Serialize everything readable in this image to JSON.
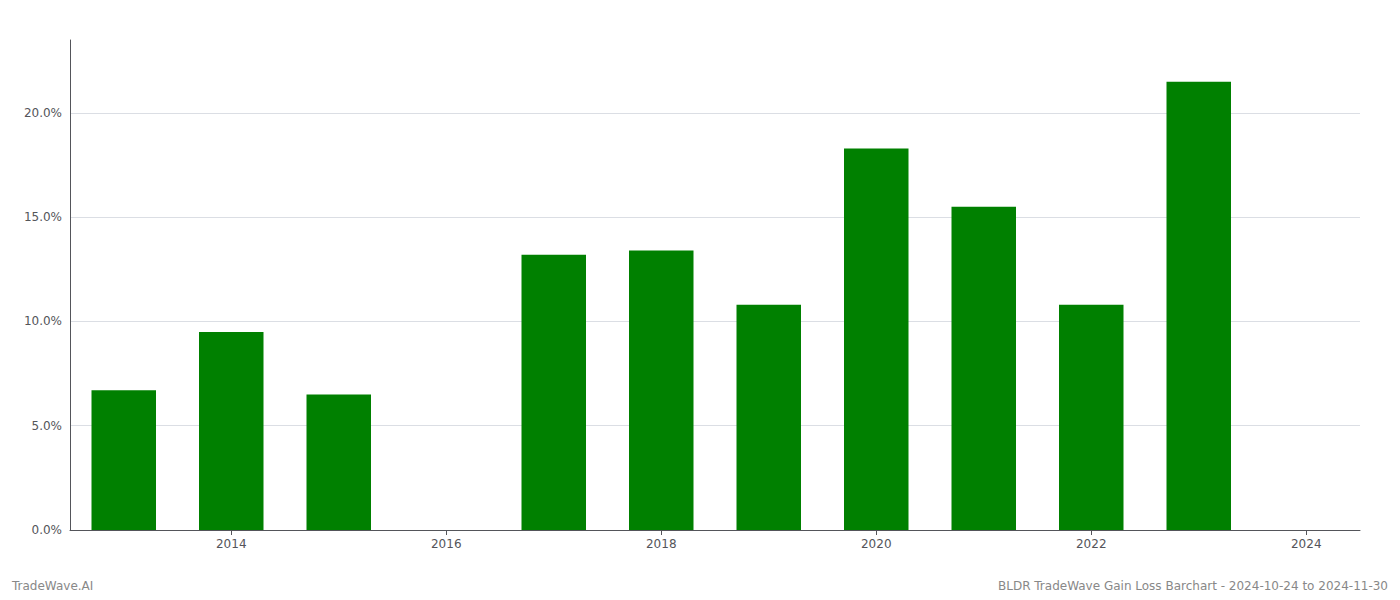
{
  "chart_data": {
    "type": "bar",
    "x": [
      2013,
      2014,
      2015,
      2017,
      2018,
      2019,
      2020,
      2021,
      2022,
      2023
    ],
    "values": [
      0.067,
      0.095,
      0.065,
      0.132,
      0.134,
      0.108,
      0.183,
      0.155,
      0.108,
      0.215
    ],
    "color": "#008000",
    "xlim": [
      2012.5,
      2024.5
    ],
    "xticks": [
      2014,
      2016,
      2018,
      2020,
      2022,
      2024
    ],
    "ylim": [
      0,
      0.235
    ],
    "yticks": [
      {
        "value": 0.0,
        "label": "0.0%"
      },
      {
        "value": 0.05,
        "label": "5.0%"
      },
      {
        "value": 0.1,
        "label": "10.0%"
      },
      {
        "value": 0.15,
        "label": "15.0%"
      },
      {
        "value": 0.2,
        "label": "20.0%"
      }
    ],
    "grid": true,
    "annotations": [
      "TradeWave.AI",
      "BLDR TradeWave Gain Loss Barchart - 2024-10-24 to 2024-11-30"
    ]
  }
}
